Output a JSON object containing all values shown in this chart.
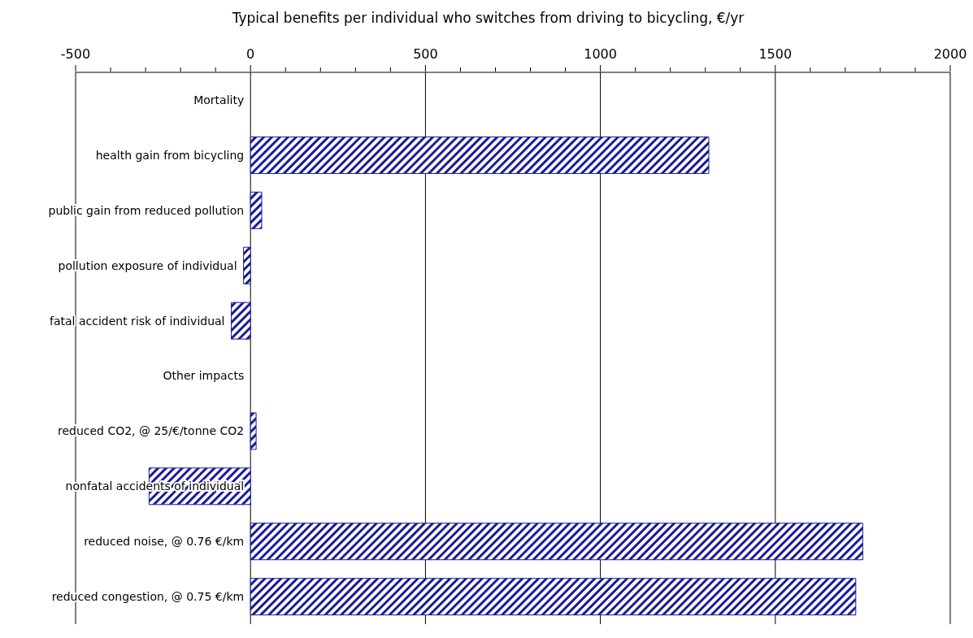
{
  "chart_data": {
    "type": "bar",
    "orientation": "horizontal",
    "title": "Typical benefits per individual who switches from driving to bicycling, €/yr",
    "categories": [
      "Mortality",
      "health gain from bicycling",
      "public gain from reduced pollution",
      "pollution exposure of individual",
      "fatal accident risk of individual",
      "Other impacts",
      "reduced CO2, @ 25/€/tonne CO2",
      "nonfatal accidents of individual",
      "reduced noise, @ 0.76 €/km",
      "reduced congestion, @ 0.75 €/km"
    ],
    "values": [
      null,
      1310,
      32,
      -20,
      -55,
      null,
      16,
      -290,
      1750,
      1730
    ],
    "color": "#1a1a9a",
    "xlim": [
      -500,
      2000
    ],
    "xticks": [
      -500,
      {
        "value": -400,
        "label": null
      },
      {
        "value": -300,
        "label": null
      },
      {
        "value": -200,
        "label": null
      },
      {
        "value": -100,
        "label": null
      },
      0,
      {
        "value": 100,
        "label": null
      },
      {
        "value": 200,
        "label": null
      },
      {
        "value": 300,
        "label": null
      },
      {
        "value": 400,
        "label": null
      },
      500,
      {
        "value": 600,
        "label": null
      },
      {
        "value": 700,
        "label": null
      },
      {
        "value": 800,
        "label": null
      },
      {
        "value": 900,
        "label": null
      },
      1000,
      {
        "value": 1100,
        "label": null
      },
      {
        "value": 1200,
        "label": null
      },
      {
        "value": 1300,
        "label": null
      },
      {
        "value": 1400,
        "label": null
      },
      1500,
      {
        "value": 1600,
        "label": null
      },
      {
        "value": 1700,
        "label": null
      },
      {
        "value": 1800,
        "label": null
      },
      {
        "value": 1900,
        "label": null
      },
      2000
    ],
    "grid": "x"
  }
}
